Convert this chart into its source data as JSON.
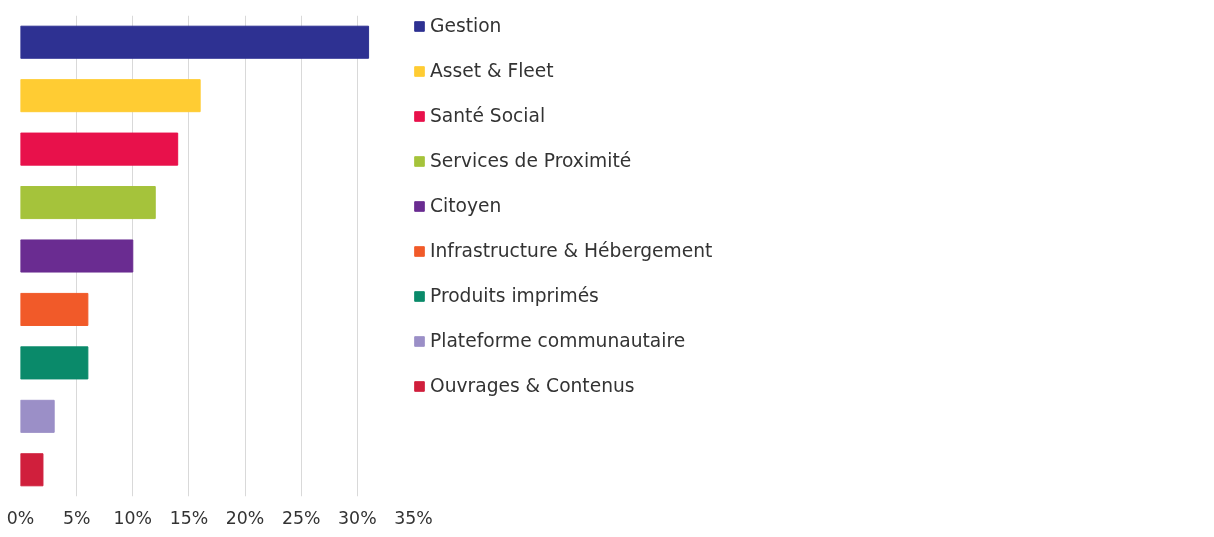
{
  "chart_data": {
    "type": "bar",
    "orientation": "horizontal",
    "categories": [
      null,
      null,
      null,
      null,
      null,
      null,
      null,
      null,
      null
    ],
    "series": [
      {
        "name": "Gestion",
        "color": "#2e3192",
        "values": [
          31,
          null,
          null,
          null,
          null,
          null,
          null,
          null,
          null
        ]
      },
      {
        "name": "Asset & Fleet",
        "color": "#ffcc33",
        "values": [
          null,
          16,
          null,
          null,
          null,
          null,
          null,
          null,
          null
        ]
      },
      {
        "name": "Santé Social",
        "color": "#e8114b",
        "values": [
          null,
          null,
          14,
          null,
          null,
          null,
          null,
          null,
          null
        ]
      },
      {
        "name": "Services de Proximité",
        "color": "#a5c33b",
        "values": [
          null,
          null,
          null,
          12,
          null,
          null,
          null,
          null,
          null
        ]
      },
      {
        "name": "Citoyen",
        "color": "#6a2c91",
        "values": [
          null,
          null,
          null,
          null,
          10,
          null,
          null,
          null,
          null
        ]
      },
      {
        "name": "Infrastructure & Hébergement",
        "color": "#f15a29",
        "values": [
          null,
          null,
          null,
          null,
          null,
          6,
          null,
          null,
          null
        ]
      },
      {
        "name": "Produits imprimés",
        "color": "#0a8a6a",
        "values": [
          null,
          null,
          null,
          null,
          null,
          null,
          6,
          null,
          null
        ]
      },
      {
        "name": "Plateforme communautaire",
        "color": "#9b8fc7",
        "values": [
          null,
          null,
          null,
          null,
          null,
          null,
          null,
          3,
          null
        ]
      },
      {
        "name": "Ouvrages & Contenus",
        "color": "#d01f3c",
        "values": [
          null,
          null,
          null,
          null,
          null,
          null,
          null,
          null,
          2
        ]
      }
    ],
    "xlim": [
      0,
      35
    ],
    "xticks": [
      {
        "value": 0,
        "label": "0%"
      },
      {
        "value": 5,
        "label": "5%"
      },
      {
        "value": 10,
        "label": "10%"
      },
      {
        "value": 15,
        "label": "15%"
      },
      {
        "value": 20,
        "label": "20%"
      },
      {
        "value": 25,
        "label": "25%"
      },
      {
        "value": 30,
        "label": "30%"
      },
      {
        "value": 35,
        "label": "35%"
      }
    ],
    "grid": "x",
    "legend": "right",
    "tick_labels": "x"
  }
}
